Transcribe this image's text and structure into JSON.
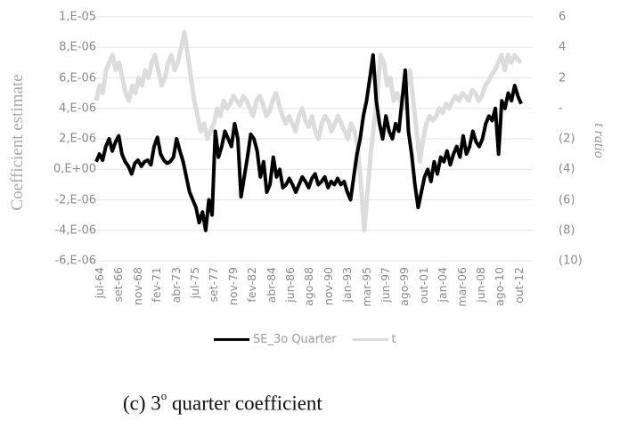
{
  "chart_data": {
    "type": "line",
    "title": "",
    "caption": "(c) 3º quarter coefficient",
    "caption_parts": {
      "prefix": "(c) 3",
      "sup": "o",
      "suffix": " quarter coefficient"
    },
    "xlabel": "",
    "ylabel_left": "Coefficient estimate",
    "ylabel_right": "t ratio",
    "ylim_left": [
      -6e-06,
      1e-05
    ],
    "ylim_right": [
      -10,
      6
    ],
    "yticks_left": [
      "1,E-05",
      "8,E-06",
      "6,E-06",
      "4,E-06",
      "2,E-06",
      "0,E+00",
      "-2,E-06",
      "-4,E-06",
      "-6,E-06"
    ],
    "yticks_right": [
      "6",
      "4",
      "2",
      "-",
      "(2)",
      "(4)",
      "(6)",
      "(8)",
      "(10)"
    ],
    "x_tick_labels": [
      "jul-64",
      "set-66",
      "nov-68",
      "fev-71",
      "abr-73",
      "jul-75",
      "set-77",
      "nov-79",
      "fev-82",
      "abr-84",
      "jun-86",
      "ago-88",
      "nov-90",
      "jan-93",
      "mar-95",
      "jun-97",
      "ago-99",
      "out-01",
      "jan-04",
      "mar-06",
      "jun-08",
      "ago-10",
      "out-12"
    ],
    "grid": true,
    "legend_position": "bottom",
    "legend": [
      {
        "name": "SE_3o Quarter",
        "color": "#000000",
        "axis": "left"
      },
      {
        "name": "t",
        "color": "#dcdcdc",
        "axis": "right"
      }
    ],
    "series": [
      {
        "name": "SE_3o Quarter",
        "axis": "left",
        "unit": "1e-06",
        "values": [
          0.5,
          1.0,
          0.6,
          1.5,
          2.0,
          1.2,
          1.8,
          2.2,
          1.0,
          0.5,
          0.2,
          -0.3,
          0.4,
          0.6,
          0.2,
          0.5,
          0.6,
          0.3,
          1.5,
          2.1,
          1.0,
          0.6,
          0.4,
          0.5,
          0.8,
          2.0,
          1.2,
          0.5,
          -0.5,
          -1.5,
          -2.0,
          -2.5,
          -3.5,
          -2.8,
          -4.0,
          -2.0,
          -3.0,
          2.5,
          0.8,
          1.5,
          2.5,
          2.0,
          1.5,
          3.0,
          2.0,
          -1.8,
          -0.5,
          0.8,
          2.3,
          2.0,
          1.2,
          -0.5,
          0.5,
          -1.5,
          -1.0,
          0.8,
          -0.5,
          0.0,
          -1.2,
          -1.0,
          -0.6,
          -1.0,
          -1.5,
          -1.0,
          -0.5,
          -0.8,
          -1.2,
          -0.6,
          -0.3,
          -1.0,
          -0.8,
          -0.5,
          -1.2,
          -0.8,
          -1.0,
          -0.6,
          -1.0,
          -0.8,
          -1.5,
          -2.0,
          -0.5,
          1.0,
          2.0,
          3.5,
          4.5,
          6.0,
          7.5,
          4.5,
          3.0,
          2.0,
          3.5,
          2.5,
          2.0,
          3.0,
          2.5,
          4.5,
          6.5,
          2.5,
          1.0,
          -1.0,
          -2.5,
          -1.5,
          -0.5,
          0.0,
          -0.8,
          0.5,
          -0.3,
          0.8,
          0.5,
          1.2,
          0.3,
          1.0,
          1.5,
          0.8,
          2.2,
          1.0,
          1.5,
          2.5,
          1.8,
          1.5,
          2.0,
          3.0,
          3.5,
          3.2,
          4.0,
          1.0,
          4.5,
          4.0,
          5.0,
          4.5,
          5.5,
          4.8,
          4.3
        ]
      },
      {
        "name": "t",
        "axis": "right",
        "unit": "ratio",
        "values": [
          0.5,
          1.5,
          1.0,
          2.5,
          3.0,
          3.5,
          2.5,
          3.0,
          2.0,
          1.0,
          0.5,
          1.5,
          1.0,
          2.0,
          1.5,
          2.5,
          2.0,
          3.0,
          3.5,
          2.5,
          1.5,
          2.0,
          3.0,
          3.5,
          2.5,
          3.0,
          4.0,
          5.0,
          3.5,
          2.0,
          0.5,
          -0.5,
          -1.5,
          -1.0,
          -2.0,
          -1.5,
          -1.0,
          0.0,
          -0.5,
          0.5,
          0.0,
          0.3,
          0.8,
          0.5,
          0.2,
          0.8,
          0.5,
          0.0,
          -0.5,
          0.5,
          0.8,
          0.3,
          -0.5,
          -0.2,
          0.5,
          1.0,
          0.2,
          -0.5,
          -1.0,
          -0.5,
          -1.0,
          -1.5,
          -0.5,
          0.0,
          -0.8,
          -1.2,
          -0.5,
          -1.5,
          -2.0,
          -1.0,
          -0.5,
          -0.8,
          -1.5,
          -1.0,
          -0.5,
          -1.0,
          -1.5,
          -2.0,
          -1.0,
          -1.5,
          -2.5,
          -5.0,
          -8.0,
          -5.5,
          -3.0,
          -1.0,
          1.0,
          3.5,
          3.0,
          1.5,
          2.0,
          0.5,
          1.0,
          0.5,
          0.0,
          1.5,
          2.5,
          0.5,
          -1.5,
          -3.5,
          -2.0,
          -1.0,
          -0.5,
          -0.8,
          -0.5,
          0.0,
          -0.3,
          0.3,
          0.0,
          0.5,
          0.8,
          0.5,
          1.0,
          0.8,
          0.5,
          1.2,
          1.0,
          0.5,
          0.8,
          1.5,
          1.8,
          2.2,
          2.5,
          3.0,
          3.5,
          2.5,
          3.5,
          3.0,
          3.5,
          3.2,
          3.0
        ]
      }
    ]
  }
}
